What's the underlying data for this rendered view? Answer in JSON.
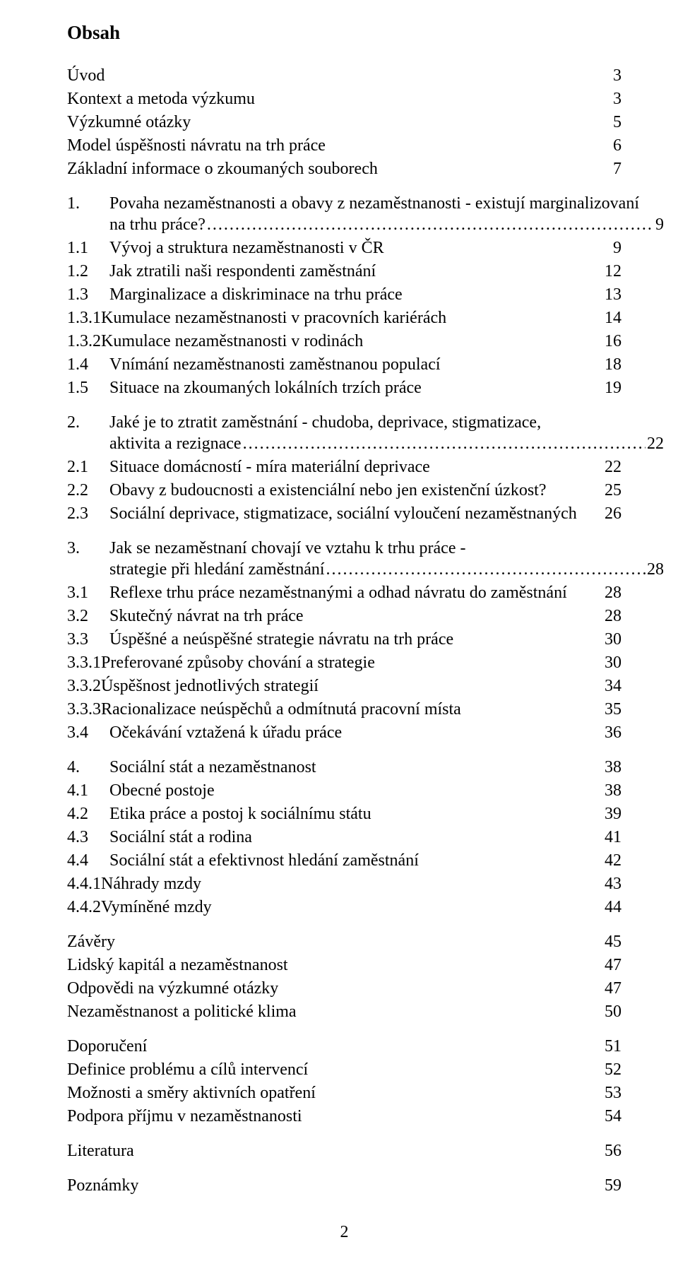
{
  "title": "Obsah",
  "footer": "2",
  "entries": [
    {
      "id": "uvod",
      "num": "",
      "label": "Úvod",
      "page": "3",
      "indent": "top"
    },
    {
      "id": "kontext",
      "num": "",
      "label": "Kontext a metoda výzkumu",
      "page": "3",
      "indent": "top"
    },
    {
      "id": "otazky",
      "num": "",
      "label": "Výzkumné otázky",
      "page": "5",
      "indent": "top"
    },
    {
      "id": "model",
      "num": "",
      "label": "Model úspěšnosti návratu na trh práce",
      "page": "6",
      "indent": "top"
    },
    {
      "id": "zakl",
      "num": "",
      "label": "Základní informace o zkoumaných souborech",
      "page": "7",
      "indent": "top"
    },
    {
      "id": "c1",
      "num": "1.",
      "label": "Povaha nezaměstnanosti a obavy z nezaměstnanosti - existují marginalizovaní",
      "label2": "na trhu práce?",
      "page": "9",
      "indent": "chapter",
      "gap": true
    },
    {
      "id": "c11",
      "num": "1.1",
      "label": "Vývoj a struktura nezaměstnanosti v ČR",
      "page": "9",
      "indent": "sub"
    },
    {
      "id": "c12",
      "num": "1.2",
      "label": "Jak ztratili naši respondenti zaměstnání",
      "page": "12",
      "indent": "sub"
    },
    {
      "id": "c13",
      "num": "1.3",
      "label": "Marginalizace a diskriminace na trhu práce",
      "page": "13",
      "indent": "sub"
    },
    {
      "id": "c131",
      "num": "1.3.1",
      "label": "Kumulace nezaměstnanosti v pracovních kariérách",
      "page": "14",
      "indent": "sub3",
      "tight": true
    },
    {
      "id": "c132",
      "num": "1.3.2",
      "label": "Kumulace nezaměstnanosti v rodinách",
      "page": "16",
      "indent": "sub3",
      "tight": true
    },
    {
      "id": "c14",
      "num": "1.4",
      "label": "Vnímání nezaměstnanosti zaměstnanou populací",
      "page": "18",
      "indent": "sub"
    },
    {
      "id": "c15",
      "num": "1.5",
      "label": "Situace na zkoumaných lokálních trzích práce",
      "page": "19",
      "indent": "sub"
    },
    {
      "id": "c2",
      "num": "2.",
      "label": "Jaké je to ztratit zaměstnání - chudoba, deprivace, stigmatizace,",
      "label2": "aktivita a rezignace",
      "page": "22",
      "indent": "chapter",
      "gap": true
    },
    {
      "id": "c21",
      "num": "2.1",
      "label": "Situace domácností - míra materiální deprivace",
      "page": "22",
      "indent": "sub"
    },
    {
      "id": "c22",
      "num": "2.2",
      "label": "Obavy z budoucnosti a existenciální nebo jen existenční úzkost?",
      "page": "25",
      "indent": "sub"
    },
    {
      "id": "c23",
      "num": "2.3",
      "label": "Sociální deprivace, stigmatizace, sociální vyloučení nezaměstnaných",
      "page": "26",
      "indent": "sub"
    },
    {
      "id": "c3",
      "num": "3.",
      "label": "Jak se nezaměstnaní chovají ve vztahu k trhu práce -",
      "label2": "strategie při hledání zaměstnání",
      "page": "28",
      "indent": "chapter",
      "gap": true
    },
    {
      "id": "c31",
      "num": "3.1",
      "label": "Reflexe trhu práce nezaměstnanými a odhad návratu do zaměstnání",
      "page": "28",
      "indent": "sub"
    },
    {
      "id": "c32",
      "num": "3.2",
      "label": "Skutečný návrat na trh práce",
      "page": "28",
      "indent": "sub"
    },
    {
      "id": "c33",
      "num": "3.3",
      "label": "Úspěšné a neúspěšné strategie návratu na trh práce",
      "page": "30",
      "indent": "sub"
    },
    {
      "id": "c331",
      "num": "3.3.1",
      "label": "Preferované způsoby chování a strategie",
      "page": "30",
      "indent": "sub3",
      "tight": true
    },
    {
      "id": "c332",
      "num": "3.3.2",
      "label": "Úspěšnost jednotlivých strategií",
      "page": "34",
      "indent": "sub3",
      "tight": true
    },
    {
      "id": "c333",
      "num": "3.3.3",
      "label": "Racionalizace neúspěchů a odmítnutá pracovní místa",
      "page": "35",
      "indent": "sub3"
    },
    {
      "id": "c34",
      "num": "3.4",
      "label": "Očekávání vztažená k úřadu práce",
      "page": "36",
      "indent": "sub"
    },
    {
      "id": "c4",
      "num": "4.",
      "label": "Sociální stát a nezaměstnanost",
      "page": "38",
      "indent": "chapter",
      "gap": true
    },
    {
      "id": "c41",
      "num": "4.1",
      "label": "Obecné postoje",
      "page": "38",
      "indent": "sub"
    },
    {
      "id": "c42",
      "num": "4.2",
      "label": "Etika práce a postoj k sociálnímu státu",
      "page": "39",
      "indent": "sub"
    },
    {
      "id": "c43",
      "num": "4.3",
      "label": "Sociální stát a rodina",
      "page": "41",
      "indent": "sub"
    },
    {
      "id": "c44",
      "num": "4.4",
      "label": "Sociální stát a efektivnost hledání zaměstnání",
      "page": "42",
      "indent": "sub"
    },
    {
      "id": "c441",
      "num": "4.4.1",
      "label": "Náhrady mzdy",
      "page": "43",
      "indent": "sub3"
    },
    {
      "id": "c442",
      "num": "4.4.2",
      "label": "Vymíněné mzdy",
      "page": "44",
      "indent": "sub3"
    },
    {
      "id": "zavery",
      "num": "",
      "label": "Závěry",
      "page": "45",
      "indent": "top",
      "gap": true
    },
    {
      "id": "lidsky",
      "num": "",
      "label": "Lidský kapitál a nezaměstnanost",
      "page": "47",
      "indent": "top"
    },
    {
      "id": "odpov",
      "num": "",
      "label": "Odpovědi na výzkumné otázky",
      "page": "47",
      "indent": "top"
    },
    {
      "id": "nezpol",
      "num": "",
      "label": "Nezaměstnanost a politické klima",
      "page": "50",
      "indent": "top"
    },
    {
      "id": "dopor",
      "num": "",
      "label": "Doporučení",
      "page": "51",
      "indent": "top",
      "gap": true
    },
    {
      "id": "defin",
      "num": "",
      "label": "Definice problému a cílů intervencí",
      "page": "52",
      "indent": "top"
    },
    {
      "id": "mozn",
      "num": "",
      "label": "Možnosti a směry aktivních  opatření",
      "page": "53",
      "indent": "top"
    },
    {
      "id": "podp",
      "num": "",
      "label": "Podpora příjmu v nezaměstnanosti",
      "page": "54",
      "indent": "top"
    },
    {
      "id": "lit",
      "num": "",
      "label": "Literatura",
      "page": "56",
      "indent": "top",
      "gap": true
    },
    {
      "id": "pozn",
      "num": "",
      "label": "Poznámky",
      "page": "59",
      "indent": "top",
      "gap": true
    }
  ]
}
